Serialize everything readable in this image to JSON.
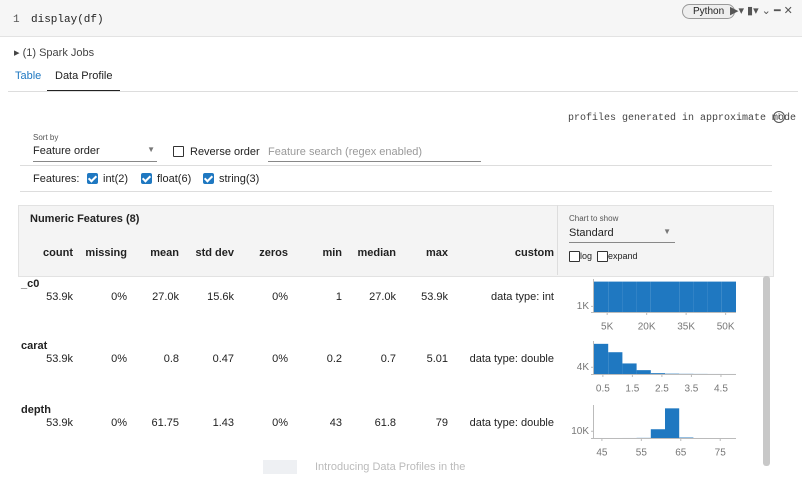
{
  "cell": {
    "line_number": "1",
    "code": "display(df)",
    "language": "Python"
  },
  "spark_jobs": "(1) Spark Jobs",
  "tabs": [
    "Table",
    "Data Profile"
  ],
  "notice": "profiles generated in approximate mode",
  "controls": {
    "sort_label": "Sort by",
    "sort_value": "Feature order",
    "reverse": "Reverse order",
    "search_placeholder": "Feature search (regex enabled)",
    "features_label": "Features:",
    "feature_filters": [
      "int(2)",
      "float(6)",
      "string(3)"
    ]
  },
  "section_title": "Numeric Features (8)",
  "chart_options": {
    "label": "Chart to show",
    "value": "Standard",
    "checkboxes": [
      "log",
      "expand"
    ]
  },
  "columns": [
    "count",
    "missing",
    "mean",
    "std dev",
    "zeros",
    "min",
    "median",
    "max",
    "custom"
  ],
  "rows": [
    {
      "name": "_c0",
      "cells": [
        "53.9k",
        "0%",
        "27.0k",
        "15.6k",
        "0%",
        "1",
        "27.0k",
        "53.9k",
        "data type: int"
      ],
      "chart": {
        "type": "histogram",
        "color": "#1f78c1",
        "bins": [
          0,
          5394,
          10788,
          16182,
          21576,
          26970,
          32364,
          37758,
          43152,
          48546,
          53940
        ],
        "counts": [
          5394,
          5394,
          5394,
          5394,
          5394,
          5394,
          5394,
          5394,
          5394,
          5394
        ],
        "xlim": [
          0,
          53940
        ],
        "ylim": [
          0,
          5500
        ],
        "xticks": [
          {
            "value": 5000,
            "label": "5K"
          },
          {
            "value": 20000,
            "label": "20K"
          },
          {
            "value": 35000,
            "label": "35K"
          },
          {
            "value": 50000,
            "label": "50K"
          }
        ],
        "yticks": [
          {
            "value": 1000,
            "label": "1K"
          }
        ]
      }
    },
    {
      "name": "carat",
      "cells": [
        "53.9k",
        "0%",
        "0.8",
        "0.47",
        "0%",
        "0.2",
        "0.7",
        "5.01",
        "data type: double"
      ],
      "chart": {
        "type": "histogram",
        "color": "#1f78c1",
        "bins": [
          0.2,
          0.681,
          1.162,
          1.643,
          2.124,
          2.605,
          3.086,
          3.567,
          4.048,
          4.529,
          5.01
        ],
        "counts": [
          18000,
          13000,
          6300,
          2300,
          500,
          200,
          100,
          50,
          20,
          10
        ],
        "xlim": [
          0.2,
          5.01
        ],
        "ylim": [
          0,
          18500
        ],
        "xticks": [
          0.5,
          1.5,
          2.5,
          3.5,
          4.5
        ],
        "yticks": [
          {
            "value": 4000,
            "label": "4K"
          }
        ]
      }
    },
    {
      "name": "depth",
      "cells": [
        "53.9k",
        "0%",
        "61.75",
        "1.43",
        "0%",
        "43",
        "61.8",
        "79",
        "data type: double"
      ],
      "chart": {
        "type": "histogram",
        "color": "#1f78c1",
        "bins": [
          43,
          46.6,
          50.2,
          53.8,
          57.4,
          61,
          64.6,
          68.2,
          71.8,
          75.4,
          79
        ],
        "counts": [
          5,
          10,
          30,
          200,
          13000,
          44000,
          700,
          5,
          2,
          1
        ],
        "xlim": [
          43,
          79
        ],
        "ylim": [
          0,
          46000
        ],
        "xticks": [
          45,
          55,
          65,
          75
        ],
        "yticks": [
          {
            "value": 10000,
            "label": "10K"
          }
        ]
      }
    }
  ],
  "footer_text": "Introducing Data Profiles in the"
}
